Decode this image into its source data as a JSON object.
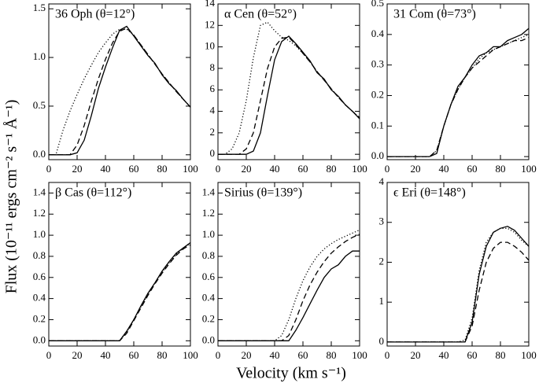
{
  "ylabel": "Flux (10⁻¹¹ ergs cm⁻² s⁻¹ Å⁻¹)",
  "xlabel": "Velocity (km s⁻¹)",
  "chart_data": [
    {
      "type": "line",
      "title": "36 Oph (θ=12°)",
      "x": [
        0,
        5,
        10,
        15,
        20,
        25,
        30,
        35,
        40,
        45,
        50,
        55,
        60,
        65,
        70,
        75,
        80,
        85,
        90,
        95,
        100
      ],
      "xlim": [
        0,
        100
      ],
      "xticks": [
        0,
        20,
        40,
        60,
        80,
        100
      ],
      "ylim": [
        -0.05,
        1.55
      ],
      "yticks": [
        {
          "value": 0,
          "label": "0.0"
        },
        {
          "value": 0.5,
          "label": "0.5"
        },
        {
          "value": 1,
          "label": "1.0"
        },
        {
          "value": 1.5,
          "label": "1.5"
        }
      ],
      "series": [
        {
          "line_style": "dotted",
          "color": "#000000",
          "values": [
            0,
            0,
            0.25,
            0.45,
            0.62,
            0.78,
            0.92,
            1.05,
            1.15,
            1.24,
            1.29,
            1.29,
            1.23,
            1.13,
            1.03,
            0.93,
            0.83,
            0.74,
            0.65,
            0.57,
            0.49
          ]
        },
        {
          "line_style": "dashed",
          "color": "#000000",
          "values": [
            0,
            0,
            0,
            0,
            0.1,
            0.3,
            0.55,
            0.78,
            0.98,
            1.15,
            1.27,
            1.3,
            1.23,
            1.13,
            1.03,
            0.93,
            0.83,
            0.74,
            0.65,
            0.57,
            0.49
          ]
        },
        {
          "line_style": "solid",
          "color": "#000000",
          "values": [
            0,
            0,
            0,
            0,
            0.02,
            0.15,
            0.4,
            0.68,
            0.9,
            1.1,
            1.28,
            1.32,
            1.22,
            1.12,
            1.02,
            0.94,
            0.82,
            0.73,
            0.66,
            0.57,
            0.49
          ]
        }
      ]
    },
    {
      "type": "line",
      "title": "α Cen (θ=52°)",
      "x": [
        0,
        5,
        10,
        15,
        20,
        25,
        30,
        35,
        40,
        45,
        50,
        55,
        60,
        65,
        70,
        75,
        80,
        85,
        90,
        95,
        100
      ],
      "xlim": [
        0,
        100
      ],
      "xticks": [
        0,
        20,
        40,
        60,
        80,
        100
      ],
      "ylim": [
        -0.5,
        14
      ],
      "yticks": [
        0,
        2,
        4,
        6,
        8,
        10,
        12,
        14
      ],
      "series": [
        {
          "line_style": "dotted",
          "color": "#000000",
          "values": [
            0,
            0,
            0.5,
            2,
            5,
            9,
            12,
            12.3,
            11.5,
            10.9,
            10.6,
            10.1,
            9.4,
            8.6,
            7.7,
            6.9,
            6.1,
            5.3,
            4.6,
            4,
            3.4
          ]
        },
        {
          "line_style": "dashed",
          "color": "#000000",
          "values": [
            0,
            0,
            0,
            0,
            0.5,
            2,
            5,
            8,
            10,
            10.8,
            10.9,
            10.2,
            9.4,
            8.6,
            7.7,
            6.9,
            6.1,
            5.3,
            4.6,
            4,
            3.4
          ]
        },
        {
          "line_style": "solid",
          "color": "#000000",
          "values": [
            0,
            0,
            0,
            0,
            0,
            0.3,
            2,
            5.5,
            8.8,
            10.5,
            11,
            10.3,
            9.5,
            8.7,
            7.6,
            7,
            6,
            5.4,
            4.6,
            4,
            3.3
          ]
        }
      ]
    },
    {
      "type": "line",
      "title": "31 Com (θ=73°)",
      "x": [
        0,
        5,
        10,
        15,
        20,
        25,
        30,
        35,
        40,
        45,
        50,
        55,
        60,
        65,
        70,
        75,
        80,
        85,
        90,
        95,
        100
      ],
      "xlim": [
        0,
        100
      ],
      "xticks": [
        0,
        20,
        40,
        60,
        80,
        100
      ],
      "ylim": [
        -0.01,
        0.5
      ],
      "yticks": [
        {
          "value": 0,
          "label": "0.0"
        },
        {
          "value": 0.1,
          "label": "0.1"
        },
        {
          "value": 0.2,
          "label": "0.2"
        },
        {
          "value": 0.3,
          "label": "0.3"
        },
        {
          "value": 0.4,
          "label": "0.4"
        },
        {
          "value": 0.5,
          "label": "0.5"
        }
      ],
      "series": [
        {
          "line_style": "dotted",
          "color": "#000000",
          "values": [
            0,
            0,
            0,
            0,
            0,
            0,
            0,
            0.02,
            0.1,
            0.17,
            0.22,
            0.26,
            0.29,
            0.32,
            0.34,
            0.35,
            0.36,
            0.37,
            0.38,
            0.39,
            0.4
          ]
        },
        {
          "line_style": "dashed",
          "color": "#000000",
          "values": [
            0,
            0,
            0,
            0,
            0,
            0,
            0,
            0.02,
            0.1,
            0.17,
            0.22,
            0.26,
            0.29,
            0.31,
            0.33,
            0.35,
            0.36,
            0.37,
            0.38,
            0.38,
            0.39
          ]
        },
        {
          "line_style": "solid",
          "color": "#000000",
          "values": [
            0,
            0,
            0,
            0,
            0,
            0,
            0,
            0.01,
            0.1,
            0.17,
            0.23,
            0.26,
            0.3,
            0.33,
            0.34,
            0.36,
            0.36,
            0.38,
            0.39,
            0.4,
            0.42
          ]
        }
      ]
    },
    {
      "type": "line",
      "title": "β Cas (θ=112°)",
      "x": [
        0,
        5,
        10,
        15,
        20,
        25,
        30,
        35,
        40,
        45,
        50,
        55,
        60,
        65,
        70,
        75,
        80,
        85,
        90,
        95,
        100
      ],
      "xlim": [
        0,
        100
      ],
      "xticks": [
        0,
        20,
        40,
        60,
        80,
        100
      ],
      "ylim": [
        -0.05,
        1.5
      ],
      "yticks": [
        {
          "value": 0,
          "label": "0.0"
        },
        {
          "value": 0.2,
          "label": "0.2"
        },
        {
          "value": 0.4,
          "label": "0.4"
        },
        {
          "value": 0.6,
          "label": "0.6"
        },
        {
          "value": 0.8,
          "label": "0.8"
        },
        {
          "value": 1,
          "label": "1.0"
        },
        {
          "value": 1.2,
          "label": "1.2"
        },
        {
          "value": 1.4,
          "label": "1.4"
        }
      ],
      "series": [
        {
          "line_style": "dotted",
          "color": "#000000",
          "values": [
            0,
            0,
            0,
            0,
            0,
            0,
            0,
            0,
            0,
            0,
            0,
            0.08,
            0.2,
            0.32,
            0.44,
            0.55,
            0.65,
            0.74,
            0.82,
            0.88,
            0.92
          ]
        },
        {
          "line_style": "dashed",
          "color": "#000000",
          "values": [
            0,
            0,
            0,
            0,
            0,
            0,
            0,
            0,
            0,
            0,
            0,
            0.07,
            0.19,
            0.31,
            0.43,
            0.54,
            0.64,
            0.73,
            0.81,
            0.87,
            0.91
          ]
        },
        {
          "line_style": "solid",
          "color": "#000000",
          "values": [
            0,
            0,
            0,
            0,
            0,
            0,
            0,
            0,
            0,
            0,
            0,
            0.09,
            0.2,
            0.33,
            0.45,
            0.55,
            0.66,
            0.75,
            0.83,
            0.88,
            0.93
          ]
        }
      ]
    },
    {
      "type": "line",
      "title": "Sirius (θ=139°)",
      "x": [
        0,
        5,
        10,
        15,
        20,
        25,
        30,
        35,
        40,
        45,
        50,
        55,
        60,
        65,
        70,
        75,
        80,
        85,
        90,
        95,
        100
      ],
      "xlim": [
        0,
        100
      ],
      "xticks": [
        0,
        20,
        40,
        60,
        80,
        100
      ],
      "ylim": [
        -0.05,
        1.5
      ],
      "yticks": [
        {
          "value": 0,
          "label": "0.0"
        },
        {
          "value": 0.2,
          "label": "0.2"
        },
        {
          "value": 0.4,
          "label": "0.4"
        },
        {
          "value": 0.6,
          "label": "0.6"
        },
        {
          "value": 0.8,
          "label": "0.8"
        },
        {
          "value": 1,
          "label": "1.0"
        },
        {
          "value": 1.2,
          "label": "1.2"
        },
        {
          "value": 1.4,
          "label": "1.4"
        }
      ],
      "series": [
        {
          "line_style": "dotted",
          "color": "#000000",
          "values": [
            0,
            0,
            0,
            0,
            0,
            0,
            0,
            0,
            0,
            0.05,
            0.2,
            0.4,
            0.57,
            0.7,
            0.8,
            0.87,
            0.92,
            0.96,
            0.99,
            1.02,
            1.05
          ]
        },
        {
          "line_style": "dashed",
          "color": "#000000",
          "values": [
            0,
            0,
            0,
            0,
            0,
            0,
            0,
            0,
            0,
            0,
            0.05,
            0.2,
            0.38,
            0.53,
            0.65,
            0.75,
            0.83,
            0.89,
            0.94,
            0.98,
            1.01
          ]
        },
        {
          "line_style": "solid",
          "color": "#000000",
          "values": [
            0,
            0,
            0,
            0,
            0,
            0,
            0,
            0,
            0,
            0,
            0,
            0.1,
            0.22,
            0.35,
            0.48,
            0.6,
            0.68,
            0.72,
            0.8,
            0.85,
            0.85
          ]
        }
      ]
    },
    {
      "type": "line",
      "title": "ϵ Eri (θ=148°)",
      "x": [
        0,
        5,
        10,
        15,
        20,
        25,
        30,
        35,
        40,
        45,
        50,
        55,
        60,
        65,
        70,
        75,
        80,
        85,
        90,
        95,
        100
      ],
      "xlim": [
        0,
        100
      ],
      "xticks": [
        0,
        20,
        40,
        60,
        80,
        100
      ],
      "ylim": [
        -0.1,
        4
      ],
      "yticks": [
        0,
        1,
        2,
        3,
        4
      ],
      "series": [
        {
          "line_style": "dotted",
          "color": "#000000",
          "values": [
            0,
            0,
            0,
            0,
            0,
            0,
            0,
            0,
            0,
            0,
            0,
            0.05,
            0.6,
            1.8,
            2.5,
            2.75,
            2.85,
            2.85,
            2.75,
            2.55,
            2.4
          ]
        },
        {
          "line_style": "dashed",
          "color": "#000000",
          "values": [
            0,
            0,
            0,
            0,
            0,
            0,
            0,
            0,
            0,
            0,
            0,
            0,
            0.4,
            1.3,
            2,
            2.35,
            2.5,
            2.5,
            2.4,
            2.25,
            2.05
          ]
        },
        {
          "line_style": "solid",
          "color": "#000000",
          "values": [
            0,
            0,
            0,
            0,
            0,
            0,
            0,
            0,
            0,
            0,
            0,
            0,
            0.5,
            1.7,
            2.4,
            2.75,
            2.85,
            2.9,
            2.8,
            2.6,
            2.4
          ]
        }
      ]
    }
  ]
}
